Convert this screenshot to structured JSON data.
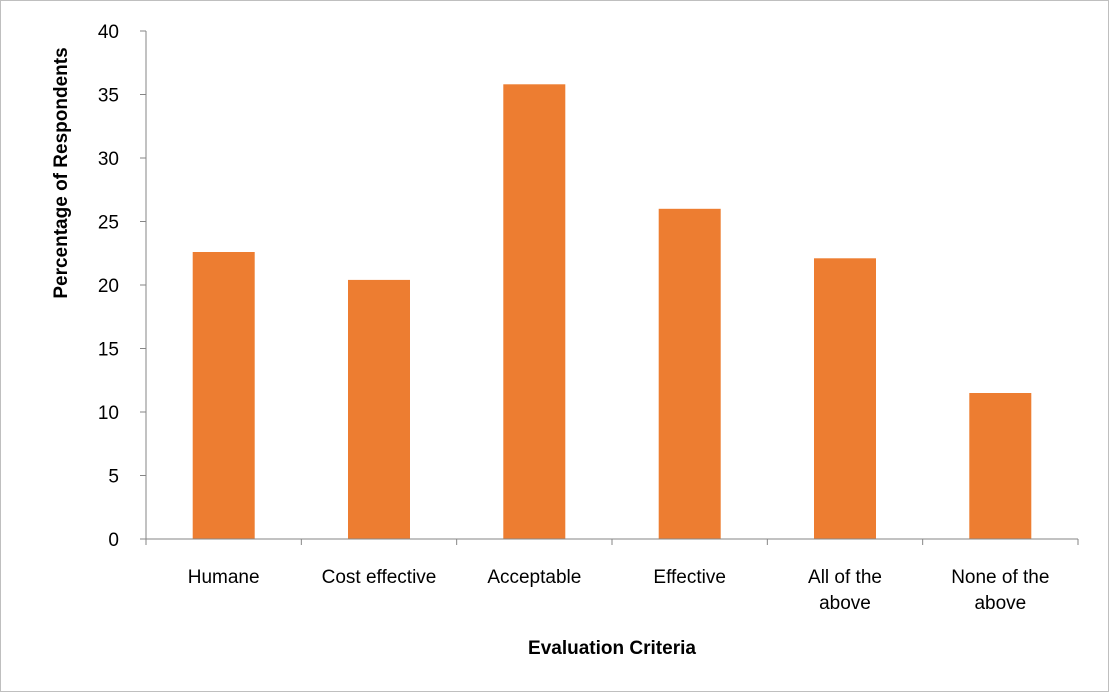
{
  "chart_data": {
    "type": "bar",
    "title": "",
    "xlabel": "Evaluation Criteria",
    "ylabel": "Percentage of Respondents",
    "categories": [
      [
        "Humane"
      ],
      [
        "Cost effective"
      ],
      [
        "Acceptable"
      ],
      [
        "Effective"
      ],
      [
        "All of the",
        "above"
      ],
      [
        "None of the",
        "above"
      ]
    ],
    "values": [
      22.6,
      20.4,
      35.8,
      26.0,
      22.1,
      11.5
    ],
    "ylim": [
      0,
      40
    ],
    "yticks": [
      0,
      5,
      10,
      15,
      20,
      25,
      30,
      35,
      40
    ],
    "bar_color": "#ED7D31",
    "grid": false,
    "legend": "none"
  }
}
